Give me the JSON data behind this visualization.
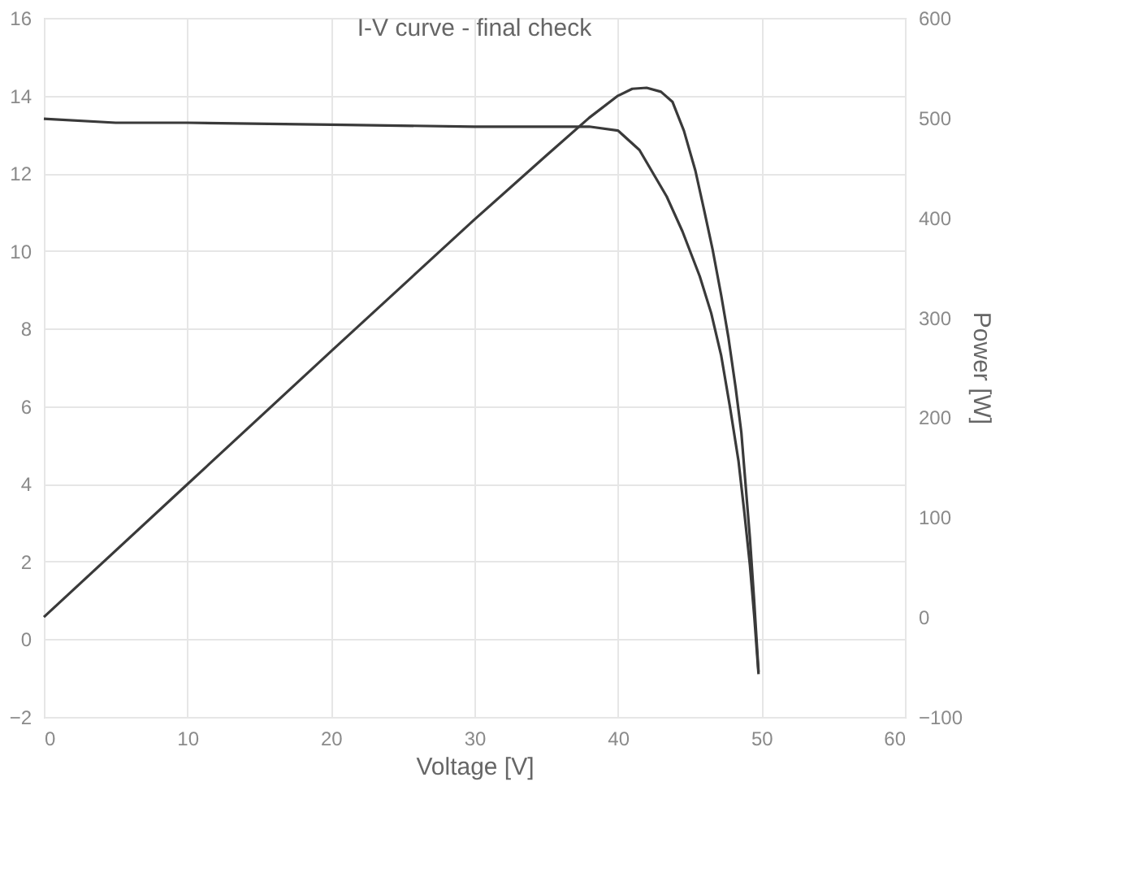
{
  "chart_data": {
    "type": "line",
    "title": "I-V curve - final check",
    "xlabel": "Voltage [V]",
    "y2label": "Power [W]",
    "xlim": [
      0,
      60
    ],
    "xticks": [
      0,
      10,
      20,
      30,
      40,
      50,
      60
    ],
    "ylim": [
      -2,
      16
    ],
    "yticks": [
      -2,
      0,
      2,
      4,
      6,
      8,
      10,
      12,
      14,
      16
    ],
    "y2lim": [
      -100,
      600
    ],
    "y2ticks": [
      -100,
      0,
      100,
      200,
      300,
      400,
      500,
      600
    ],
    "grid": true,
    "line_style": "solid",
    "marker": "none",
    "series": [
      {
        "color": "#3a3a3a",
        "x": [
          0,
          5,
          10,
          20,
          30,
          36,
          38,
          40,
          41.5,
          43.4,
          44.5,
          45.7,
          46.5,
          47.2,
          47.8,
          48.4,
          48.8,
          49.2,
          49.5,
          49.8
        ],
        "values": [
          13.4,
          13.3,
          13.3,
          13.25,
          13.2,
          13.2,
          13.2,
          13.1,
          12.6,
          11.4,
          10.5,
          9.35,
          8.4,
          7.3,
          6.0,
          4.6,
          3.3,
          1.9,
          0.6,
          -0.9
        ]
      },
      {
        "color": "#3a3a3a",
        "axis": "y2",
        "x": [
          0,
          10,
          20,
          30,
          35,
          38,
          40,
          41,
          42,
          43,
          43.8,
          44.6,
          45.4,
          46,
          46.6,
          47.2,
          47.7,
          48.2,
          48.6,
          49.2,
          49.5,
          49.8
        ],
        "values": [
          0,
          133,
          266,
          398,
          462,
          500,
          522,
          529,
          530,
          526,
          516,
          487,
          447,
          408,
          368,
          322,
          280,
          230,
          185,
          79,
          15,
          -55
        ]
      }
    ]
  }
}
